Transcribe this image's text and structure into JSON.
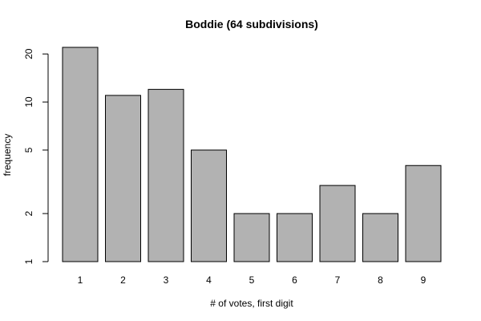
{
  "chart_data": {
    "type": "bar",
    "title": "Boddie (64 subdivisions)",
    "xlabel": "# of votes, first digit",
    "ylabel": "frequency",
    "categories": [
      "1",
      "2",
      "3",
      "4",
      "5",
      "6",
      "7",
      "8",
      "9"
    ],
    "values": [
      22,
      11,
      12,
      5,
      2,
      2,
      3,
      2,
      4
    ],
    "y_scale": "log",
    "ylim": [
      1,
      22
    ],
    "y_ticks": [
      1,
      2,
      5,
      10,
      20
    ],
    "y_tick_labels": [
      "1",
      "2",
      "5",
      "10",
      "20"
    ],
    "grid": false,
    "bar_color": "#b2b2b2"
  }
}
